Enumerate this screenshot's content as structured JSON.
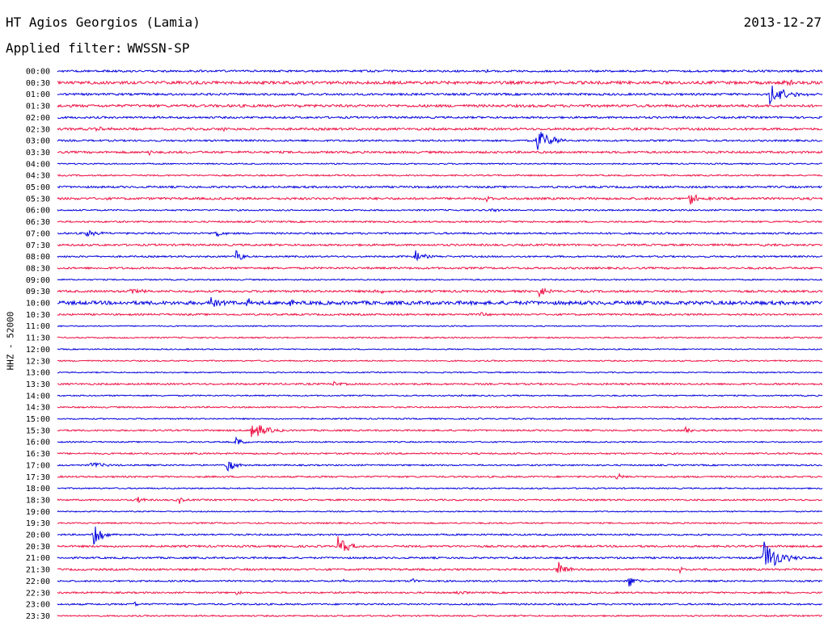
{
  "header": {
    "station": "HT Agios Georgios (Lamia)",
    "date": "2013-12-27",
    "filter_label": "Applied filter:",
    "filter_value": "WWSSN-SP"
  },
  "channel_label": "HHZ - 52000",
  "colors": {
    "even_trace": "#0000dd",
    "odd_trace": "#ee1144"
  },
  "chart_data": {
    "type": "line",
    "title": "HT Agios Georgios (Lamia)",
    "subtitle": "Applied filter: WWSSN-SP",
    "ylabel": "HHZ - 52000",
    "xlabel": "",
    "y_categories": [
      "00:00",
      "00:30",
      "01:00",
      "01:30",
      "02:00",
      "02:30",
      "03:00",
      "03:30",
      "04:00",
      "04:30",
      "05:00",
      "05:30",
      "06:00",
      "06:30",
      "07:00",
      "07:30",
      "08:00",
      "08:30",
      "09:00",
      "09:30",
      "10:00",
      "10:30",
      "11:00",
      "11:30",
      "12:00",
      "12:30",
      "13:00",
      "13:30",
      "14:00",
      "14:30",
      "15:00",
      "15:30",
      "16:00",
      "16:30",
      "17:00",
      "17:30",
      "18:00",
      "18:30",
      "19:00",
      "19:30",
      "20:00",
      "20:30",
      "21:00",
      "21:30",
      "22:00",
      "22:30",
      "23:00",
      "23:30"
    ],
    "x_range_minutes": [
      0,
      30
    ],
    "noise_levels": [
      1.2,
      1.8,
      1.3,
      1.6,
      1.2,
      1.4,
      1.1,
      1.3,
      0.8,
      0.9,
      1.2,
      1.4,
      0.9,
      1.0,
      1.1,
      1.2,
      1.0,
      1.2,
      0.8,
      1.3,
      2.2,
      1.1,
      0.7,
      0.8,
      0.7,
      0.8,
      0.7,
      1.1,
      0.8,
      0.9,
      0.8,
      1.0,
      0.8,
      1.0,
      0.9,
      1.0,
      0.8,
      1.0,
      0.7,
      0.9,
      1.0,
      1.2,
      1.1,
      1.2,
      1.0,
      1.0,
      1.0,
      0.9
    ],
    "events": [
      {
        "row": 0,
        "t": 16.8,
        "amp": 4,
        "dur": 0.5
      },
      {
        "row": 1,
        "t": 28.5,
        "amp": 4,
        "dur": 1.0
      },
      {
        "row": 2,
        "t": 27.9,
        "amp": 13,
        "dur": 2.0
      },
      {
        "row": 3,
        "t": 9.4,
        "amp": 3,
        "dur": 0.5
      },
      {
        "row": 5,
        "t": 1.5,
        "amp": 3,
        "dur": 1.2
      },
      {
        "row": 5,
        "t": 6.4,
        "amp": 4,
        "dur": 0.6
      },
      {
        "row": 6,
        "t": 18.8,
        "amp": 16,
        "dur": 1.5
      },
      {
        "row": 7,
        "t": 3.6,
        "amp": 4,
        "dur": 0.4
      },
      {
        "row": 11,
        "t": 24.8,
        "amp": 11,
        "dur": 0.8
      },
      {
        "row": 11,
        "t": 16.8,
        "amp": 3,
        "dur": 1.0
      },
      {
        "row": 12,
        "t": 16.9,
        "amp": 3,
        "dur": 1.5
      },
      {
        "row": 14,
        "t": 1.1,
        "amp": 4,
        "dur": 1.5
      },
      {
        "row": 14,
        "t": 6.2,
        "amp": 8,
        "dur": 0.5
      },
      {
        "row": 15,
        "t": 27.7,
        "amp": 3,
        "dur": 0.6
      },
      {
        "row": 16,
        "t": 7.0,
        "amp": 11,
        "dur": 0.7
      },
      {
        "row": 16,
        "t": 14.0,
        "amp": 8,
        "dur": 1.0
      },
      {
        "row": 17,
        "t": 3.5,
        "amp": 3,
        "dur": 0.4
      },
      {
        "row": 19,
        "t": 2.9,
        "amp": 9,
        "dur": 0.7
      },
      {
        "row": 19,
        "t": 12.4,
        "amp": 3,
        "dur": 1.2
      },
      {
        "row": 19,
        "t": 18.9,
        "amp": 8,
        "dur": 0.6
      },
      {
        "row": 20,
        "t": 6.0,
        "amp": 8,
        "dur": 0.8
      },
      {
        "row": 20,
        "t": 7.4,
        "amp": 7,
        "dur": 0.6
      },
      {
        "row": 20,
        "t": 9.0,
        "amp": 4,
        "dur": 0.6
      },
      {
        "row": 21,
        "t": 16.6,
        "amp": 3,
        "dur": 0.6
      },
      {
        "row": 27,
        "t": 10.8,
        "amp": 3,
        "dur": 0.8
      },
      {
        "row": 28,
        "t": 15.8,
        "amp": 2,
        "dur": 0.5
      },
      {
        "row": 31,
        "t": 7.6,
        "amp": 12,
        "dur": 1.5
      },
      {
        "row": 31,
        "t": 24.6,
        "amp": 6,
        "dur": 0.6
      },
      {
        "row": 32,
        "t": 7.0,
        "amp": 9,
        "dur": 0.5
      },
      {
        "row": 34,
        "t": 1.3,
        "amp": 4,
        "dur": 1.5
      },
      {
        "row": 34,
        "t": 6.6,
        "amp": 12,
        "dur": 0.8
      },
      {
        "row": 35,
        "t": 21.9,
        "amp": 6,
        "dur": 0.6
      },
      {
        "row": 37,
        "t": 3.1,
        "amp": 7,
        "dur": 0.5
      },
      {
        "row": 37,
        "t": 4.7,
        "amp": 7,
        "dur": 0.5
      },
      {
        "row": 40,
        "t": 1.4,
        "amp": 16,
        "dur": 1.0
      },
      {
        "row": 41,
        "t": 11.0,
        "amp": 13,
        "dur": 1.2
      },
      {
        "row": 42,
        "t": 27.7,
        "amp": 24,
        "dur": 1.6
      },
      {
        "row": 43,
        "t": 19.6,
        "amp": 16,
        "dur": 1.0
      },
      {
        "row": 43,
        "t": 24.4,
        "amp": 4,
        "dur": 0.5
      },
      {
        "row": 44,
        "t": 22.4,
        "amp": 9,
        "dur": 0.6
      },
      {
        "row": 44,
        "t": 13.9,
        "amp": 5,
        "dur": 0.4
      },
      {
        "row": 44,
        "t": 11.2,
        "amp": 3,
        "dur": 0.3
      },
      {
        "row": 45,
        "t": 7.0,
        "amp": 4,
        "dur": 0.5
      },
      {
        "row": 45,
        "t": 15.7,
        "amp": 4,
        "dur": 0.5
      },
      {
        "row": 46,
        "t": 3.0,
        "amp": 6,
        "dur": 0.4
      }
    ]
  }
}
